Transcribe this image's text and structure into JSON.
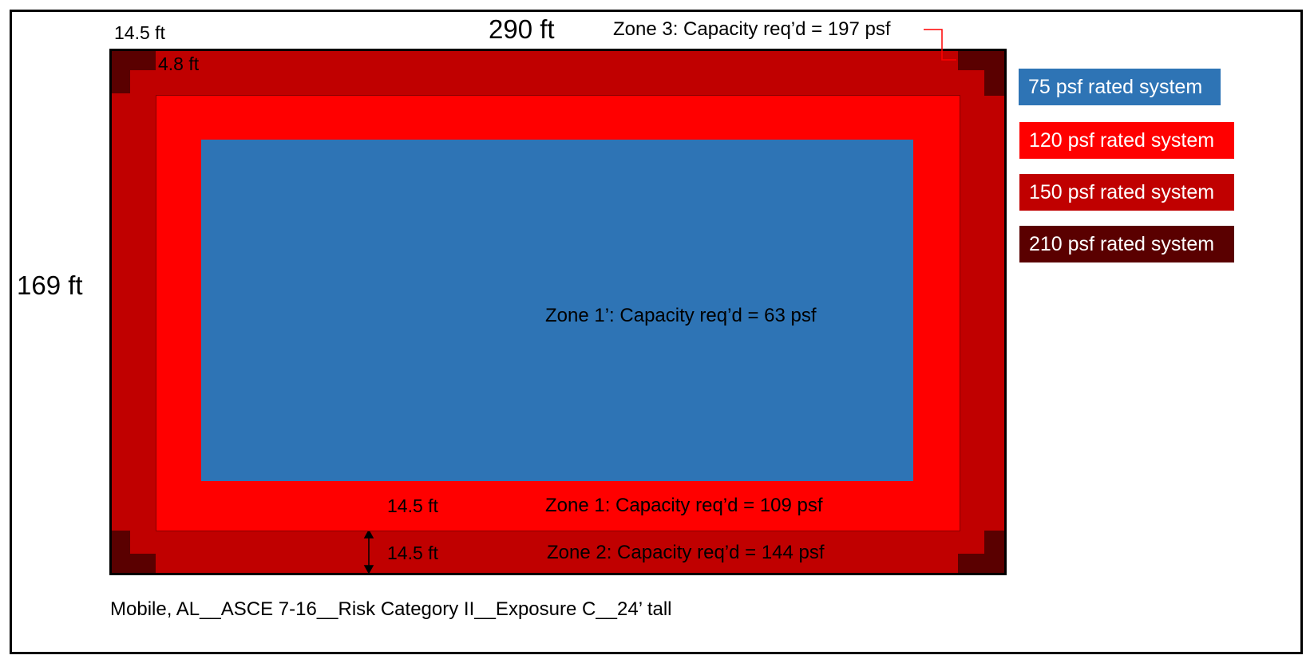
{
  "colors": {
    "zone1p": "#2e74b5",
    "zone1": "#ff0000",
    "zone2": "#c00000",
    "zone3": "#5a0000",
    "outline": "#000000"
  },
  "dims": {
    "width_label": "290 ft",
    "height_label": "169 ft",
    "corner_top_label": "14.5 ft",
    "corner_inner_label": "4.8 ft",
    "zone1_width_label": "14.5 ft",
    "zone2_width_label": "14.5 ft"
  },
  "zones": {
    "zone3": "Zone 3: Capacity req’d = 197 psf",
    "zone1p": "Zone 1’: Capacity req’d = 63 psf",
    "zone1": "Zone 1: Capacity req’d = 109 psf",
    "zone2": "Zone 2: Capacity req’d = 144 psf"
  },
  "legend": [
    {
      "label": "75 psf rated system",
      "color": "#2e74b5"
    },
    {
      "label": "120 psf rated system",
      "color": "#ff0000"
    },
    {
      "label": "150 psf rated system",
      "color": "#c00000"
    },
    {
      "label": "210 psf rated system",
      "color": "#5a0000"
    }
  ],
  "footer": "Mobile, AL__ASCE 7-16__Risk Category II__Exposure C__24’ tall"
}
